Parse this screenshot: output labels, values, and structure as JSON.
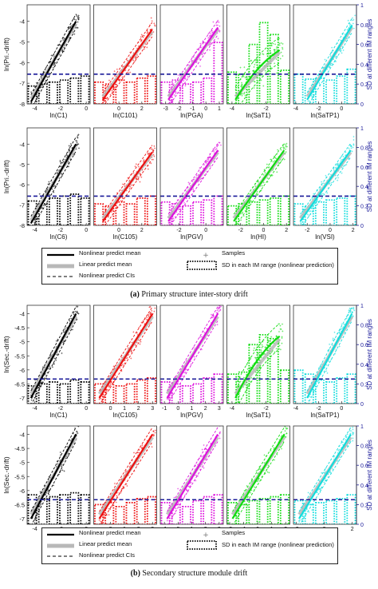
{
  "figure": {
    "caption_a_letter": "(a)",
    "caption_a_text": " Primary structure inter-story drift",
    "caption_b_letter": "(b)",
    "caption_b_text": " Secondary structure module drift",
    "right_axis_label": "SD at different IM ranges",
    "legend": {
      "nonlinear": "Nonlinear predict mean",
      "linear": "Linear predict mean",
      "cis": "Nonlinear predict CIs",
      "samples": "Samples",
      "sd": "SD in each IM range (nonlinear prediction)"
    }
  },
  "colors": {
    "C1": "#000000",
    "C6": "#000000",
    "C101": "#ee1111",
    "C105": "#ee1111",
    "PGA": "#dd11dd",
    "PGV": "#dd11dd",
    "SaT1": "#11dd11",
    "HI": "#11dd11",
    "SaTP1": "#11dddd",
    "VSI": "#11dddd",
    "threshold": "#1a1a99",
    "linear_mean": "#b8b8b8"
  },
  "chart_data": [
    {
      "panel_group": "a-top",
      "type": "scatter",
      "ylabel": "ln(Pri.-drift)",
      "ylim": [
        -8,
        -3.2
      ],
      "yticks": [
        -8,
        -7,
        -6,
        -5,
        -4
      ],
      "right_ylim": [
        0,
        1
      ],
      "right_yticks": [
        "0",
        "0.2",
        "0.4",
        "0.6",
        "0.8",
        "1"
      ],
      "threshold_right": 0.3,
      "subplots": [
        {
          "xlabel": "ln(C1)",
          "xlim": [
            -4.6,
            0.3
          ],
          "xticks": [
            -4,
            -2,
            0
          ],
          "color_key": "C1",
          "fit_start": [
            -4.3,
            -7.9
          ],
          "fit_end": [
            -0.8,
            -4.0
          ],
          "curve_bend": 0,
          "sd_bars": [
            0.18,
            0.2,
            0.22,
            0.24,
            0.26,
            0.28
          ]
        },
        {
          "xlabel": "ln(C101)",
          "xlim": [
            -2.2,
            3.3
          ],
          "xticks": [
            0,
            2
          ],
          "color_key": "C101",
          "fit_start": [
            -1.4,
            -7.8
          ],
          "fit_end": [
            2.9,
            -4.4
          ],
          "curve_bend": 0,
          "sd_bars": [
            0.22,
            0.2,
            0.24,
            0.22,
            0.26,
            0.28
          ]
        },
        {
          "xlabel": "ln(PGA)",
          "xlim": [
            -3.4,
            1.3
          ],
          "xticks": [
            -3,
            -2,
            -1,
            0,
            1
          ],
          "color_key": "PGA",
          "fit_start": [
            -2.8,
            -7.8
          ],
          "fit_end": [
            0.9,
            -4.3
          ],
          "curve_bend": 0,
          "sd_bars": [
            0.22,
            0.24,
            0.2,
            0.22,
            0.26,
            0.62
          ]
        },
        {
          "xlabel": "ln(SaT1)",
          "xlim": [
            -4.3,
            -0.6
          ],
          "xticks": [
            -4,
            -2
          ],
          "color_key": "SaT1",
          "fit_start": [
            -3.8,
            -7.8
          ],
          "fit_end": [
            -1.2,
            -5.4
          ],
          "curve_bend": 0.5,
          "sd_bars": [
            0.32,
            0.3,
            0.6,
            0.82,
            0.7,
            0.34
          ]
        },
        {
          "xlabel": "ln(SaTP1)",
          "xlim": [
            -4.2,
            1.3
          ],
          "xticks": [
            -4,
            -2,
            0
          ],
          "color_key": "SaTP1",
          "fit_start": [
            -3.0,
            -7.8
          ],
          "fit_end": [
            0.9,
            -4.2
          ],
          "curve_bend": 0,
          "sd_bars": [
            0.3,
            0.25,
            0.26,
            0.24,
            0.28,
            0.35
          ]
        }
      ]
    },
    {
      "panel_group": "a-bottom",
      "type": "scatter",
      "ylabel": "ln(Pri.-drift)",
      "ylim": [
        -8,
        -3.2
      ],
      "yticks": [
        -8,
        -7,
        -6,
        -5,
        -4
      ],
      "right_ylim": [
        0,
        1
      ],
      "right_yticks": [
        "0",
        "0.2",
        "0.4",
        "0.6",
        "0.8",
        "1"
      ],
      "threshold_right": 0.3,
      "subplots": [
        {
          "xlabel": "ln(C6)",
          "xlim": [
            -4.6,
            0.3
          ],
          "xticks": [
            -4,
            -2,
            0
          ],
          "color_key": "C6",
          "fit_start": [
            -4.3,
            -7.9
          ],
          "fit_end": [
            -0.8,
            -4.0
          ],
          "curve_bend": 0,
          "sd_bars": [
            0.25,
            0.22,
            0.28,
            0.3,
            0.32,
            0.28
          ]
        },
        {
          "xlabel": "ln(C105)",
          "xlim": [
            -2.2,
            3.3
          ],
          "xticks": [
            0,
            2
          ],
          "color_key": "C105",
          "fit_start": [
            -1.4,
            -7.8
          ],
          "fit_end": [
            2.9,
            -4.4
          ],
          "curve_bend": 0,
          "sd_bars": [
            0.22,
            0.2,
            0.24,
            0.22,
            0.28,
            0.3
          ]
        },
        {
          "xlabel": "ln(PGV)",
          "xlim": [
            -3.4,
            1.3
          ],
          "xticks": [
            -2,
            0
          ],
          "color_key": "PGV",
          "fit_start": [
            -2.8,
            -7.8
          ],
          "fit_end": [
            0.9,
            -4.3
          ],
          "curve_bend": 0,
          "sd_bars": [
            0.24,
            0.22,
            0.2,
            0.24,
            0.26,
            0.3
          ]
        },
        {
          "xlabel": "ln(HI)",
          "xlim": [
            -3.2,
            2.3
          ],
          "xticks": [
            -2,
            0,
            2
          ],
          "color_key": "HI",
          "fit_start": [
            -2.6,
            -7.8
          ],
          "fit_end": [
            1.8,
            -4.3
          ],
          "curve_bend": 0,
          "sd_bars": [
            0.2,
            0.22,
            0.24,
            0.26,
            0.28,
            0.3
          ]
        },
        {
          "xlabel": "ln(VSI)",
          "xlim": [
            -3.2,
            2.3
          ],
          "xticks": [
            -2,
            0,
            2
          ],
          "color_key": "VSI",
          "fit_start": [
            -2.6,
            -7.8
          ],
          "fit_end": [
            1.8,
            -4.3
          ],
          "curve_bend": 0,
          "sd_bars": [
            0.22,
            0.2,
            0.24,
            0.26,
            0.28,
            0.3
          ]
        }
      ]
    },
    {
      "panel_group": "b-top",
      "type": "scatter",
      "ylabel": "ln(Sec.-drift)",
      "ylim": [
        -7.2,
        -3.7
      ],
      "yticks": [
        -7,
        -6.5,
        -6,
        -5.5,
        -5,
        -4.5,
        -4
      ],
      "right_ylim": [
        0,
        1
      ],
      "right_yticks": [
        "0",
        "0.2",
        "0.4",
        "0.6",
        "0.8",
        "1"
      ],
      "threshold_right": 0.25,
      "subplots": [
        {
          "xlabel": "ln(C1)",
          "xlim": [
            -4.6,
            0.3
          ],
          "xticks": [
            -4,
            -2,
            0
          ],
          "color_key": "C1",
          "fit_start": [
            -4.3,
            -7.0
          ],
          "fit_end": [
            -0.8,
            -4.0
          ],
          "curve_bend": 0,
          "sd_bars": [
            0.18,
            0.2,
            0.22,
            0.2,
            0.24,
            0.22
          ]
        },
        {
          "xlabel": "ln(C105)",
          "xlim": [
            -1.2,
            3.3
          ],
          "xticks": [
            0,
            1,
            2,
            3
          ],
          "color_key": "C105",
          "fit_start": [
            -0.8,
            -7.0
          ],
          "fit_end": [
            3.0,
            -4.0
          ],
          "curve_bend": 0,
          "sd_bars": [
            0.2,
            0.22,
            0.18,
            0.2,
            0.24,
            0.26
          ]
        },
        {
          "xlabel": "ln(PGV)",
          "xlim": [
            -1.3,
            3.3
          ],
          "xticks": [
            -1,
            0,
            1,
            2,
            3
          ],
          "color_key": "PGV",
          "fit_start": [
            -0.8,
            -7.0
          ],
          "fit_end": [
            2.9,
            -4.0
          ],
          "curve_bend": 0,
          "sd_bars": [
            0.22,
            0.2,
            0.18,
            0.2,
            0.26,
            0.3
          ]
        },
        {
          "xlabel": "ln(SaT1)",
          "xlim": [
            -4.3,
            -0.6
          ],
          "xticks": [
            -4,
            -2
          ],
          "color_key": "SaT1",
          "fit_start": [
            -3.8,
            -7.0
          ],
          "fit_end": [
            -1.2,
            -4.8
          ],
          "curve_bend": 0.5,
          "sd_bars": [
            0.3,
            0.32,
            0.6,
            0.7,
            0.66,
            0.34
          ]
        },
        {
          "xlabel": "ln(SaTP1)",
          "xlim": [
            -4.2,
            1.3
          ],
          "xticks": [
            -4,
            -2,
            0
          ],
          "color_key": "SaTP1",
          "fit_start": [
            -3.0,
            -7.0
          ],
          "fit_end": [
            0.9,
            -4.0
          ],
          "curve_bend": 0,
          "sd_bars": [
            0.34,
            0.3,
            0.24,
            0.22,
            0.26,
            0.3
          ]
        }
      ]
    },
    {
      "panel_group": "b-bottom",
      "type": "scatter",
      "ylabel": "ln(Sec.-drift)",
      "ylim": [
        -7.2,
        -3.7
      ],
      "yticks": [
        -7,
        -6.5,
        -6,
        -5.5,
        -5,
        -4.5,
        -4
      ],
      "right_ylim": [
        0,
        1
      ],
      "right_yticks": [
        "0",
        "0.2",
        "0.4",
        "0.6",
        "0.8",
        "1"
      ],
      "threshold_right": 0.25,
      "subplots": [
        {
          "xlabel": "ln(C6)",
          "xlim": [
            -4.6,
            0.3
          ],
          "xticks": [
            -4,
            -2,
            0
          ],
          "color_key": "C6",
          "fit_start": [
            -4.3,
            -7.0
          ],
          "fit_end": [
            -0.8,
            -4.0
          ],
          "curve_bend": 0,
          "sd_bars": [
            0.3,
            0.26,
            0.28,
            0.3,
            0.32,
            0.3
          ]
        },
        {
          "xlabel": "ln(C105)",
          "xlim": [
            -1.2,
            3.3
          ],
          "xticks": [
            0,
            1,
            2,
            3
          ],
          "color_key": "C105",
          "fit_start": [
            -0.8,
            -7.0
          ],
          "fit_end": [
            3.0,
            -4.0
          ],
          "curve_bend": 0,
          "sd_bars": [
            0.2,
            0.22,
            0.18,
            0.22,
            0.26,
            0.28
          ]
        },
        {
          "xlabel": "ln(PGV)",
          "xlim": [
            -1.3,
            3.3
          ],
          "xticks": [
            -1,
            0,
            1,
            2,
            3
          ],
          "color_key": "PGV",
          "fit_start": [
            -0.8,
            -7.0
          ],
          "fit_end": [
            2.9,
            -4.0
          ],
          "curve_bend": 0,
          "sd_bars": [
            0.22,
            0.2,
            0.18,
            0.24,
            0.28,
            0.3
          ]
        },
        {
          "xlabel": "ln(HI)",
          "xlim": [
            -2.2,
            2.3
          ],
          "xticks": [
            -2,
            -1,
            0,
            1,
            2
          ],
          "color_key": "HI",
          "fit_start": [
            -1.8,
            -7.0
          ],
          "fit_end": [
            1.9,
            -4.0
          ],
          "curve_bend": 0,
          "sd_bars": [
            0.22,
            0.2,
            0.24,
            0.26,
            0.28,
            0.3
          ]
        },
        {
          "xlabel": "ln(VSI)",
          "xlim": [
            -2.2,
            2.3
          ],
          "xticks": [
            -2,
            0,
            2
          ],
          "color_key": "VSI",
          "fit_start": [
            -1.8,
            -7.0
          ],
          "fit_end": [
            1.9,
            -4.0
          ],
          "curve_bend": 0,
          "sd_bars": [
            0.24,
            0.2,
            0.22,
            0.24,
            0.26,
            0.3
          ]
        }
      ]
    }
  ]
}
